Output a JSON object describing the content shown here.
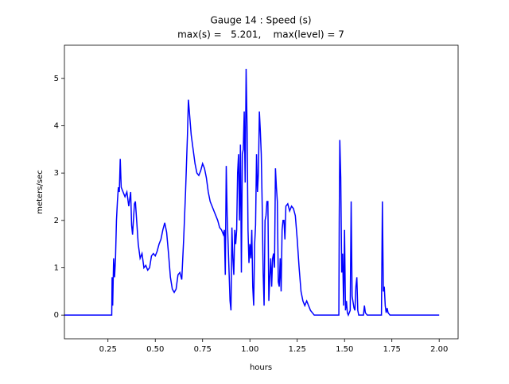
{
  "chart_data": {
    "type": "line",
    "title": "Gauge 14 : Speed (s)",
    "subtitle": "max(s) =   5.201,    max(level) = 7",
    "x_label": "hours",
    "y_label": "meters/sec",
    "color": "#0000ff",
    "grid": false,
    "xlim": [
      0.02,
      2.1
    ],
    "ylim": [
      -0.5,
      5.7
    ],
    "xticks": [
      0.25,
      {
        "value": 0.5,
        "label": "0.50"
      },
      0.75,
      {
        "value": 1,
        "label": "1.00"
      },
      1.25,
      {
        "value": 1.5,
        "label": "1.50"
      },
      1.75,
      {
        "value": 2,
        "label": "2.00"
      }
    ],
    "yticks": [
      0,
      1,
      2,
      3,
      4,
      5
    ],
    "x": [
      0.02,
      0.27,
      0.272,
      0.275,
      0.28,
      0.285,
      0.29,
      0.295,
      0.3,
      0.305,
      0.31,
      0.315,
      0.32,
      0.33,
      0.34,
      0.35,
      0.36,
      0.37,
      0.375,
      0.38,
      0.39,
      0.395,
      0.4,
      0.41,
      0.42,
      0.43,
      0.44,
      0.45,
      0.46,
      0.47,
      0.48,
      0.49,
      0.5,
      0.51,
      0.52,
      0.53,
      0.54,
      0.55,
      0.56,
      0.57,
      0.58,
      0.59,
      0.6,
      0.61,
      0.62,
      0.63,
      0.64,
      0.65,
      0.66,
      0.67,
      0.675,
      0.68,
      0.69,
      0.7,
      0.71,
      0.72,
      0.73,
      0.74,
      0.75,
      0.76,
      0.77,
      0.78,
      0.79,
      0.8,
      0.81,
      0.82,
      0.83,
      0.84,
      0.85,
      0.86,
      0.865,
      0.87,
      0.875,
      0.88,
      0.885,
      0.89,
      0.895,
      0.9,
      0.905,
      0.91,
      0.915,
      0.92,
      0.925,
      0.93,
      0.935,
      0.94,
      0.945,
      0.95,
      0.955,
      0.96,
      0.965,
      0.97,
      0.975,
      0.98,
      0.985,
      0.99,
      0.995,
      1.0,
      1.005,
      1.01,
      1.015,
      1.02,
      1.025,
      1.03,
      1.035,
      1.04,
      1.045,
      1.05,
      1.055,
      1.06,
      1.065,
      1.07,
      1.075,
      1.08,
      1.085,
      1.09,
      1.095,
      1.1,
      1.105,
      1.11,
      1.115,
      1.12,
      1.125,
      1.13,
      1.135,
      1.14,
      1.145,
      1.15,
      1.155,
      1.16,
      1.165,
      1.17,
      1.175,
      1.18,
      1.185,
      1.19,
      1.2,
      1.21,
      1.22,
      1.23,
      1.24,
      1.25,
      1.26,
      1.27,
      1.28,
      1.29,
      1.3,
      1.31,
      1.32,
      1.33,
      1.34,
      1.47,
      1.472,
      1.475,
      1.48,
      1.485,
      1.49,
      1.495,
      1.5,
      1.505,
      1.51,
      1.515,
      1.52,
      1.53,
      1.535,
      1.54,
      1.55,
      1.555,
      1.56,
      1.565,
      1.57,
      1.575,
      1.6,
      1.605,
      1.61,
      1.62,
      1.695,
      1.7,
      1.705,
      1.71,
      1.715,
      1.72,
      1.725,
      1.73,
      1.74,
      2.0
    ],
    "values": [
      0,
      0,
      0.8,
      0.2,
      1.2,
      0.8,
      1.2,
      2.0,
      2.4,
      2.7,
      2.6,
      3.3,
      2.7,
      2.6,
      2.5,
      2.6,
      2.3,
      2.6,
      1.9,
      1.7,
      2.35,
      2.4,
      2.1,
      1.5,
      1.2,
      1.3,
      1.0,
      1.05,
      0.95,
      1.0,
      1.25,
      1.3,
      1.25,
      1.35,
      1.5,
      1.6,
      1.8,
      1.95,
      1.75,
      1.3,
      0.8,
      0.55,
      0.48,
      0.55,
      0.85,
      0.9,
      0.75,
      1.6,
      2.6,
      3.8,
      4.55,
      4.3,
      3.8,
      3.5,
      3.2,
      3.0,
      2.95,
      3.05,
      3.2,
      3.1,
      2.9,
      2.6,
      2.4,
      2.3,
      2.2,
      2.1,
      2.0,
      1.85,
      1.8,
      1.7,
      1.8,
      0.85,
      3.15,
      2.1,
      1.5,
      0.9,
      0.3,
      0.1,
      1.85,
      1.2,
      0.85,
      1.8,
      1.5,
      1.8,
      3.0,
      3.4,
      2.0,
      3.6,
      0.9,
      3.4,
      3.5,
      4.3,
      2.8,
      5.2,
      4.0,
      1.8,
      1.1,
      1.5,
      1.2,
      1.8,
      0.6,
      0.2,
      1.5,
      1.9,
      3.4,
      2.6,
      3.0,
      4.3,
      3.9,
      3.4,
      2.3,
      0.9,
      0.2,
      2.0,
      2.1,
      2.4,
      2.4,
      0.3,
      0.8,
      1.2,
      0.6,
      1.2,
      1.3,
      1.0,
      3.1,
      2.7,
      2.4,
      0.7,
      0.6,
      1.2,
      0.5,
      1.8,
      2.0,
      2.0,
      1.6,
      2.3,
      2.35,
      2.2,
      2.3,
      2.25,
      2.1,
      1.6,
      1.0,
      0.5,
      0.3,
      0.2,
      0.3,
      0.2,
      0.1,
      0.05,
      0,
      0,
      2.0,
      3.7,
      2.9,
      0.9,
      1.3,
      0.2,
      1.8,
      0.1,
      0.3,
      0.05,
      0,
      0.1,
      2.4,
      0.4,
      0.15,
      0.1,
      0.6,
      0.8,
      0.1,
      0,
      0,
      0.2,
      0.05,
      0,
      0,
      2.4,
      0.5,
      0.6,
      0.2,
      0.05,
      0.15,
      0.05,
      0,
      0
    ]
  }
}
